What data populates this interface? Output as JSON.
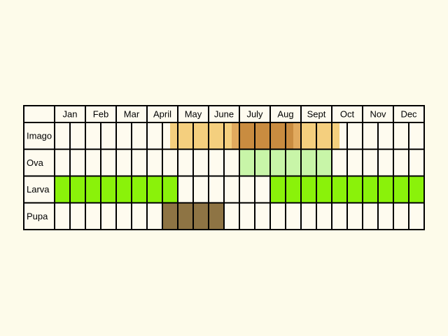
{
  "colors": {
    "background": "#fdfbea",
    "cell": "#fefbef",
    "border": "#000000",
    "imago_light": "#f4cf7e",
    "imago_mid": "#e1aa5e",
    "imago_dark": "#c98c40",
    "ova": "#c8f5a8",
    "larva": "#8af20a",
    "pupa": "#8e7444"
  },
  "months": [
    "Jan",
    "Feb",
    "Mar",
    "April",
    "May",
    "June",
    "July",
    "Aug",
    "Sept",
    "Oct",
    "Nov",
    "Dec"
  ],
  "stages": [
    {
      "label": "Imago",
      "segments": [
        {
          "from": 7.5,
          "to": 11.5,
          "color": "imago_light"
        },
        {
          "from": 11.5,
          "to": 12,
          "color": "imago_mid"
        },
        {
          "from": 12,
          "to": 15.5,
          "color": "imago_dark"
        },
        {
          "from": 15.5,
          "to": 16,
          "color": "imago_mid"
        },
        {
          "from": 16,
          "to": 18.5,
          "color": "imago_light"
        }
      ]
    },
    {
      "label": "Ova",
      "segments": [
        {
          "from": 12,
          "to": 18,
          "color": "ova"
        }
      ]
    },
    {
      "label": "Larva",
      "segments": [
        {
          "from": 0,
          "to": 8,
          "color": "larva"
        },
        {
          "from": 14,
          "to": 24,
          "color": "larva"
        }
      ]
    },
    {
      "label": "Pupa",
      "segments": [
        {
          "from": 7,
          "to": 11,
          "color": "pupa"
        }
      ]
    }
  ]
}
